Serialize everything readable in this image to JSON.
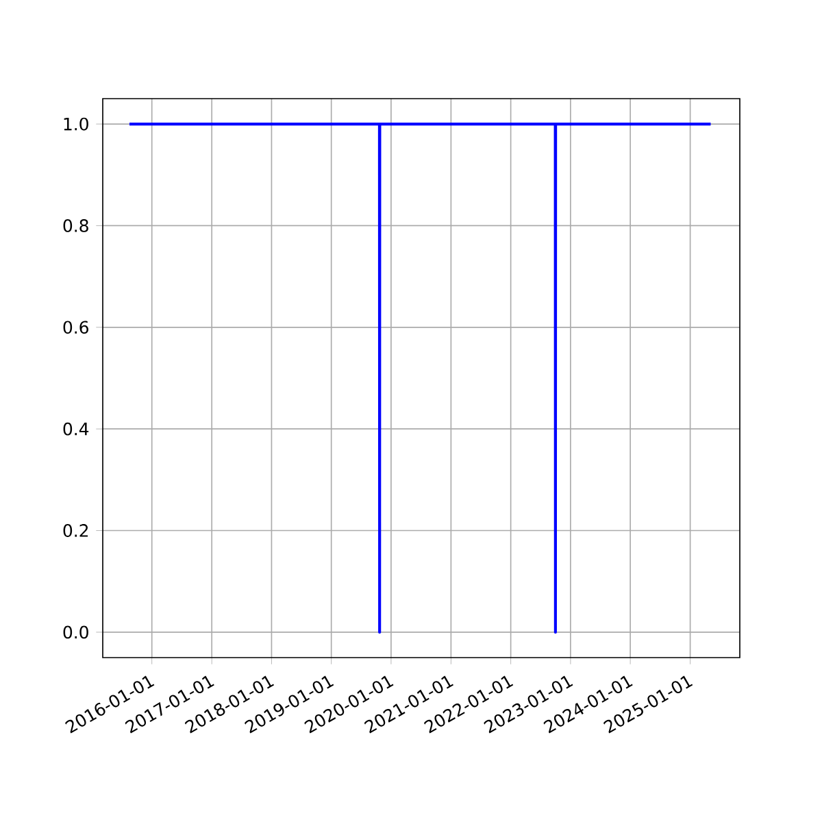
{
  "chart_data": {
    "type": "line",
    "x": [
      "2015-08-17",
      "2019-10-22",
      "2019-10-23",
      "2019-10-24",
      "2022-09-30",
      "2022-10-01",
      "2022-10-02",
      "2025-05-06"
    ],
    "series": [
      {
        "color": "#0000ff",
        "values": [
          1,
          1,
          0,
          1,
          1,
          0,
          1,
          1
        ]
      }
    ],
    "xlim": [
      "2015-03-07",
      "2025-10-31"
    ],
    "xticks": [
      "2016-01-01",
      "2017-01-01",
      "2018-01-01",
      "2019-01-01",
      "2020-01-01",
      "2021-01-01",
      "2022-01-01",
      "2023-01-01",
      "2024-01-01",
      "2025-01-01"
    ],
    "ylim": [
      -0.05,
      1.05
    ],
    "yticks": [
      {
        "value": 0,
        "label": "0.0"
      },
      {
        "value": 0.2,
        "label": "0.2"
      },
      {
        "value": 0.4,
        "label": "0.4"
      },
      {
        "value": 0.6,
        "label": "0.6"
      },
      {
        "value": 0.8,
        "label": "0.8"
      },
      {
        "value": 1,
        "label": "1.0"
      }
    ],
    "grid": true
  }
}
